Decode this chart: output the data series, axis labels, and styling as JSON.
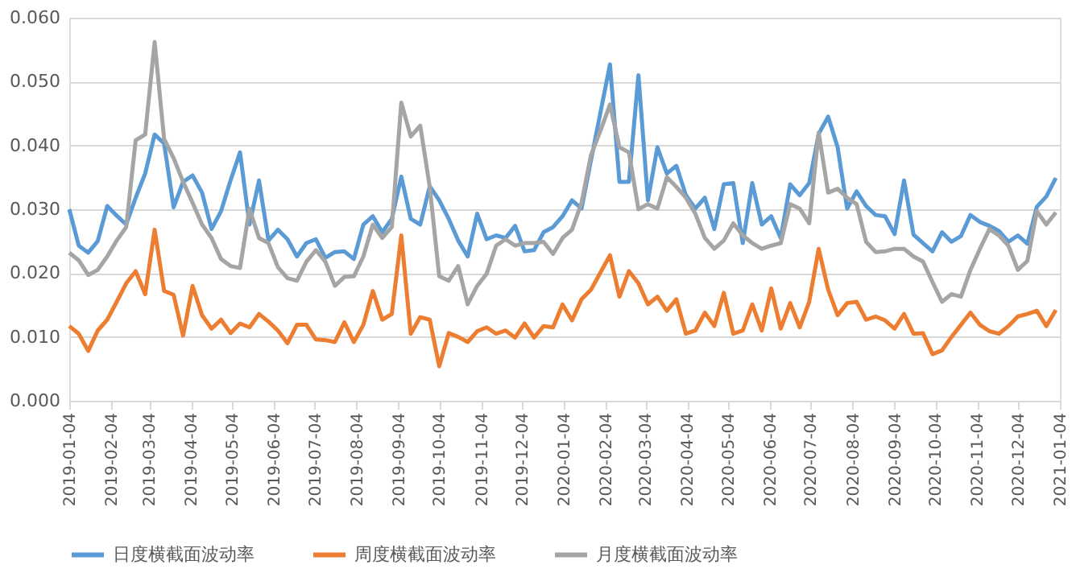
{
  "chart_data": {
    "type": "line",
    "x": [
      "2019-01-04",
      "2019-01-11",
      "2019-01-18",
      "2019-01-25",
      "2019-02-01",
      "2019-02-08",
      "2019-02-15",
      "2019-02-22",
      "2019-03-01",
      "2019-03-08",
      "2019-03-15",
      "2019-03-22",
      "2019-03-29",
      "2019-04-05",
      "2019-04-12",
      "2019-04-19",
      "2019-04-26",
      "2019-05-03",
      "2019-05-10",
      "2019-05-17",
      "2019-05-24",
      "2019-05-31",
      "2019-06-07",
      "2019-06-14",
      "2019-06-21",
      "2019-06-28",
      "2019-07-05",
      "2019-07-12",
      "2019-07-19",
      "2019-07-26",
      "2019-08-02",
      "2019-08-09",
      "2019-08-16",
      "2019-08-23",
      "2019-08-30",
      "2019-09-06",
      "2019-09-13",
      "2019-09-20",
      "2019-09-27",
      "2019-10-04",
      "2019-10-11",
      "2019-10-18",
      "2019-10-25",
      "2019-11-01",
      "2019-11-08",
      "2019-11-15",
      "2019-11-22",
      "2019-11-29",
      "2019-12-06",
      "2019-12-13",
      "2019-12-20",
      "2019-12-27",
      "2020-01-03",
      "2020-01-10",
      "2020-01-17",
      "2020-01-24",
      "2020-01-31",
      "2020-02-07",
      "2020-02-14",
      "2020-02-21",
      "2020-02-28",
      "2020-03-06",
      "2020-03-13",
      "2020-03-20",
      "2020-03-27",
      "2020-04-03",
      "2020-04-10",
      "2020-04-17",
      "2020-04-24",
      "2020-05-01",
      "2020-05-08",
      "2020-05-15",
      "2020-05-22",
      "2020-05-29",
      "2020-06-05",
      "2020-06-12",
      "2020-06-19",
      "2020-06-26",
      "2020-07-03",
      "2020-07-10",
      "2020-07-17",
      "2020-07-24",
      "2020-07-31",
      "2020-08-07",
      "2020-08-14",
      "2020-08-21",
      "2020-08-28",
      "2020-09-04",
      "2020-09-11",
      "2020-09-18",
      "2020-09-25",
      "2020-10-02",
      "2020-10-09",
      "2020-10-16",
      "2020-10-23",
      "2020-10-30",
      "2020-11-06",
      "2020-11-13",
      "2020-11-20",
      "2020-11-27",
      "2020-12-04",
      "2020-12-11",
      "2020-12-18",
      "2020-12-25",
      "2021-01-01"
    ],
    "series": [
      {
        "name": "日度横截面波动率",
        "color": "#5b9bd5",
        "values": [
          0.03,
          0.0243,
          0.0232,
          0.025,
          0.0305,
          0.029,
          0.0276,
          0.0318,
          0.0356,
          0.0417,
          0.0403,
          0.0303,
          0.0343,
          0.0353,
          0.0326,
          0.0269,
          0.0297,
          0.0345,
          0.0389,
          0.0276,
          0.0345,
          0.0251,
          0.0268,
          0.0253,
          0.0226,
          0.0247,
          0.0253,
          0.0224,
          0.0233,
          0.0234,
          0.0222,
          0.0276,
          0.0289,
          0.0264,
          0.0285,
          0.0351,
          0.0285,
          0.0276,
          0.0336,
          0.0314,
          0.0285,
          0.0251,
          0.0226,
          0.0293,
          0.0253,
          0.0259,
          0.0255,
          0.0274,
          0.0234,
          0.0236,
          0.0264,
          0.0272,
          0.0289,
          0.0314,
          0.0301,
          0.0377,
          0.0452,
          0.0527,
          0.0343,
          0.0343,
          0.051,
          0.0314,
          0.0397,
          0.0356,
          0.0368,
          0.0322,
          0.0301,
          0.0318,
          0.0269,
          0.0339,
          0.0341,
          0.0247,
          0.0341,
          0.0276,
          0.0289,
          0.0255,
          0.0339,
          0.0322,
          0.0341,
          0.0418,
          0.0445,
          0.0397,
          0.0301,
          0.0328,
          0.0305,
          0.0291,
          0.0289,
          0.0261,
          0.0345,
          0.026,
          0.0247,
          0.0234,
          0.0264,
          0.0249,
          0.0258,
          0.0291,
          0.028,
          0.0274,
          0.0266,
          0.0249,
          0.0259,
          0.0246,
          0.0304,
          0.032,
          0.0349
        ]
      },
      {
        "name": "周度横截面波动率",
        "color": "#ed7d31",
        "values": [
          0.0117,
          0.0105,
          0.0078,
          0.011,
          0.0127,
          0.0155,
          0.0184,
          0.0203,
          0.0167,
          0.0268,
          0.0172,
          0.0166,
          0.0102,
          0.018,
          0.0134,
          0.0113,
          0.0127,
          0.0106,
          0.0121,
          0.0115,
          0.0136,
          0.0124,
          0.011,
          0.009,
          0.0119,
          0.0119,
          0.0096,
          0.0095,
          0.0092,
          0.0123,
          0.0092,
          0.0119,
          0.0172,
          0.0127,
          0.0136,
          0.0259,
          0.0105,
          0.0131,
          0.0127,
          0.0054,
          0.0106,
          0.01,
          0.0092,
          0.0109,
          0.0115,
          0.0105,
          0.011,
          0.0099,
          0.0121,
          0.0099,
          0.0117,
          0.0115,
          0.0151,
          0.0126,
          0.0159,
          0.0174,
          0.0201,
          0.0228,
          0.0163,
          0.0203,
          0.0184,
          0.0151,
          0.0163,
          0.0141,
          0.0159,
          0.0105,
          0.011,
          0.0138,
          0.0117,
          0.0169,
          0.0105,
          0.011,
          0.0151,
          0.011,
          0.0176,
          0.0113,
          0.0153,
          0.0115,
          0.0155,
          0.0238,
          0.0174,
          0.0134,
          0.0153,
          0.0155,
          0.0127,
          0.0132,
          0.0126,
          0.0113,
          0.0136,
          0.0105,
          0.0106,
          0.0073,
          0.0079,
          0.01,
          0.0119,
          0.0138,
          0.0119,
          0.0109,
          0.0105,
          0.0117,
          0.0132,
          0.0136,
          0.0141,
          0.0117,
          0.0142
        ]
      },
      {
        "name": "月度横截面波动率",
        "color": "#a5a5a5",
        "values": [
          0.0232,
          0.022,
          0.0197,
          0.0205,
          0.0226,
          0.0251,
          0.0272,
          0.0408,
          0.0417,
          0.0562,
          0.041,
          0.038,
          0.0343,
          0.031,
          0.0276,
          0.0255,
          0.0222,
          0.0211,
          0.0208,
          0.0301,
          0.0255,
          0.0247,
          0.0209,
          0.0192,
          0.0188,
          0.0218,
          0.0236,
          0.0218,
          0.018,
          0.0194,
          0.0195,
          0.0226,
          0.0276,
          0.0255,
          0.0272,
          0.0467,
          0.0414,
          0.0431,
          0.0335,
          0.0195,
          0.0188,
          0.0211,
          0.0151,
          0.018,
          0.0199,
          0.0243,
          0.0253,
          0.0243,
          0.0247,
          0.0247,
          0.0249,
          0.023,
          0.0255,
          0.0268,
          0.031,
          0.0385,
          0.0423,
          0.0464,
          0.0397,
          0.0389,
          0.03,
          0.0308,
          0.0301,
          0.035,
          0.0335,
          0.0318,
          0.0293,
          0.0255,
          0.0238,
          0.0251,
          0.0278,
          0.0259,
          0.0247,
          0.0238,
          0.0243,
          0.0247,
          0.0308,
          0.0301,
          0.0278,
          0.042,
          0.0326,
          0.0332,
          0.0318,
          0.0308,
          0.0249,
          0.0233,
          0.0234,
          0.0238,
          0.0238,
          0.0226,
          0.0218,
          0.0186,
          0.0155,
          0.0167,
          0.0163,
          0.0205,
          0.0238,
          0.0269,
          0.0259,
          0.0243,
          0.0205,
          0.0219,
          0.0297,
          0.0276,
          0.0295
        ]
      }
    ],
    "xlim": [
      "2019-01-04",
      "2021-01-04"
    ],
    "xticks": [
      "2019-01-04",
      "2019-02-04",
      "2019-03-04",
      "2019-04-04",
      "2019-05-04",
      "2019-06-04",
      "2019-07-04",
      "2019-08-04",
      "2019-09-04",
      "2019-10-04",
      "2019-11-04",
      "2019-12-04",
      "2020-01-04",
      "2020-02-04",
      "2020-03-04",
      "2020-04-04",
      "2020-05-04",
      "2020-06-04",
      "2020-07-04",
      "2020-08-04",
      "2020-09-04",
      "2020-10-04",
      "2020-11-04",
      "2020-12-04",
      "2021-01-04"
    ],
    "ylim": [
      0,
      0.06
    ],
    "yticks": [
      {
        "value": 0,
        "label": "0.000"
      },
      {
        "value": 0.01,
        "label": "0.010"
      },
      {
        "value": 0.02,
        "label": "0.020"
      },
      {
        "value": 0.03,
        "label": "0.030"
      },
      {
        "value": 0.04,
        "label": "0.040"
      },
      {
        "value": 0.05,
        "label": "0.050"
      },
      {
        "value": 0.06,
        "label": "0.060"
      }
    ],
    "grid": "y",
    "legend": "bottom",
    "marker": "none",
    "line_style": "solid"
  }
}
